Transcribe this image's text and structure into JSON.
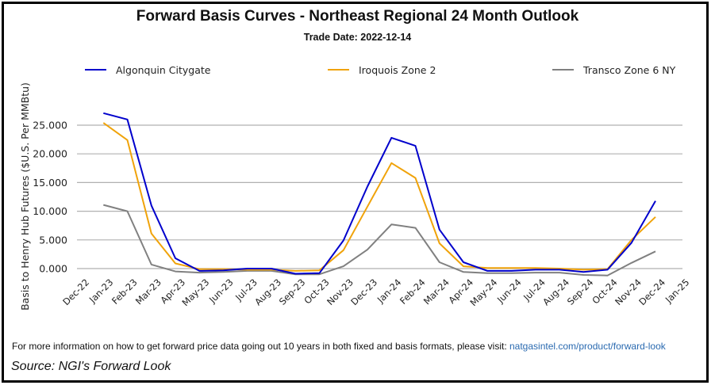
{
  "chart_data": {
    "type": "line",
    "title": "Forward Basis Curves - Northeast Regional 24 Month Outlook",
    "subtitle": "Trade Date: 2022-12-14",
    "xlabel": "",
    "ylabel": "Basis to Henry Hub Futures ($U.S. Per MMBtu)",
    "ylim": [
      -2,
      30
    ],
    "yticks": [
      0,
      5,
      10,
      15,
      20,
      25
    ],
    "ytick_labels": [
      "0.000",
      "5.000",
      "10.000",
      "15.000",
      "20.000",
      "25.000"
    ],
    "grid": true,
    "legend_position": "top",
    "x_axis_labels": [
      "Dec-22",
      "Jan-23",
      "Feb-23",
      "Mar-23",
      "Apr-23",
      "May-23",
      "Jun-23",
      "Jul-23",
      "Aug-23",
      "Sep-23",
      "Oct-23",
      "Nov-23",
      "Dec-23",
      "Jan-24",
      "Feb-24",
      "Mar-24",
      "Apr-24",
      "May-24",
      "Jun-24",
      "Jul-24",
      "Aug-24",
      "Sep-24",
      "Oct-24",
      "Nov-24",
      "Dec-24",
      "Jan-25"
    ],
    "x": [
      "Jan-23",
      "Feb-23",
      "Mar-23",
      "Apr-23",
      "May-23",
      "Jun-23",
      "Jul-23",
      "Aug-23",
      "Sep-23",
      "Oct-23",
      "Nov-23",
      "Dec-23",
      "Jan-24",
      "Feb-24",
      "Mar-24",
      "Apr-24",
      "May-24",
      "Jun-24",
      "Jul-24",
      "Aug-24",
      "Sep-24",
      "Oct-24",
      "Nov-24",
      "Dec-24"
    ],
    "series": [
      {
        "name": "Algonquin Citygate",
        "color": "#0000cc",
        "values": [
          27.1,
          26.0,
          11.0,
          1.8,
          -0.4,
          -0.3,
          0.0,
          0.0,
          -0.9,
          -0.8,
          4.9,
          14.3,
          22.8,
          21.4,
          6.8,
          1.1,
          -0.4,
          -0.4,
          -0.2,
          -0.2,
          -0.6,
          -0.2,
          4.5,
          11.8
        ]
      },
      {
        "name": "Iroquois Zone 2",
        "color": "#f0a30a",
        "values": [
          25.4,
          22.4,
          6.1,
          0.9,
          -0.1,
          -0.1,
          -0.2,
          -0.2,
          -0.4,
          -0.3,
          3.2,
          10.8,
          18.4,
          15.8,
          4.4,
          0.4,
          0.1,
          0.1,
          0.1,
          0.0,
          -0.2,
          -0.1,
          5.0,
          9.0
        ]
      },
      {
        "name": "Transco Zone 6 NY",
        "color": "#808080",
        "values": [
          11.1,
          10.0,
          0.7,
          -0.5,
          -0.7,
          -0.6,
          -0.4,
          -0.4,
          -1.0,
          -1.0,
          0.4,
          3.3,
          7.7,
          7.1,
          1.1,
          -0.6,
          -0.8,
          -0.8,
          -0.7,
          -0.7,
          -1.1,
          -1.2,
          1.0,
          3.0
        ]
      }
    ]
  },
  "footer": {
    "note_text": "For more information on how to get forward price data going out 10 years in both fixed and basis formats, please visit: ",
    "note_link": "natgasintel.com/product/forward-look",
    "source": "Source: NGI's Forward Look"
  }
}
